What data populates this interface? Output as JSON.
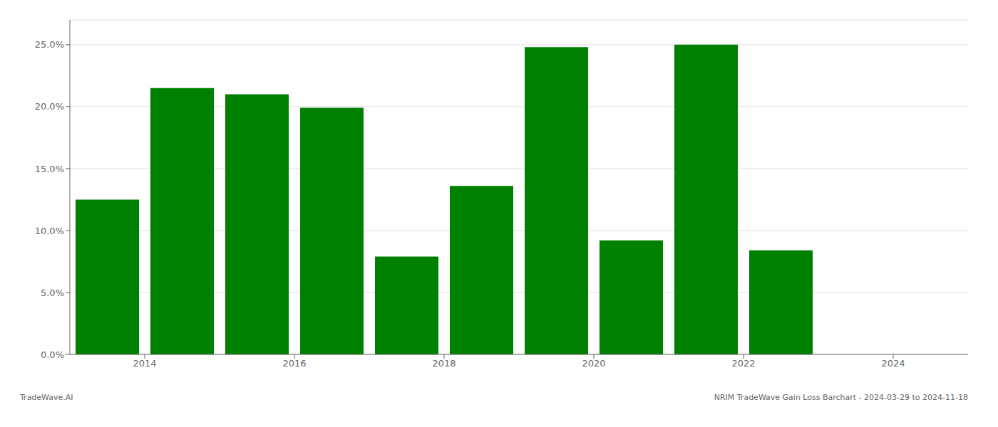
{
  "chart_data": {
    "type": "bar",
    "x": [
      2013,
      2014,
      2015,
      2016,
      2017,
      2018,
      2019,
      2020,
      2021,
      2022
    ],
    "values": [
      0.125,
      0.215,
      0.21,
      0.199,
      0.079,
      0.136,
      0.248,
      0.092,
      0.25,
      0.084
    ],
    "color": "#008000",
    "xlim": [
      2012.5,
      2024.5
    ],
    "xticks": [
      {
        "value": 2013.5,
        "label": "2014"
      },
      {
        "value": 2015.5,
        "label": "2016"
      },
      {
        "value": 2017.5,
        "label": "2018"
      },
      {
        "value": 2019.5,
        "label": "2020"
      },
      {
        "value": 2021.5,
        "label": "2022"
      },
      {
        "value": 2023.5,
        "label": "2024"
      }
    ],
    "ylim": [
      0,
      0.27
    ],
    "yticks": [
      {
        "value": 0.0,
        "label": "0.0%"
      },
      {
        "value": 0.05,
        "label": "5.0%"
      },
      {
        "value": 0.1,
        "label": "10.0%"
      },
      {
        "value": 0.15,
        "label": "15.0%"
      },
      {
        "value": 0.2,
        "label": "20.0%"
      },
      {
        "value": 0.25,
        "label": "25.0%"
      }
    ],
    "grid": true,
    "annotations": [
      "TradeWave.AI",
      "NRIM TradeWave Gain Loss Barchart - 2024-03-29 to 2024-11-18"
    ]
  }
}
